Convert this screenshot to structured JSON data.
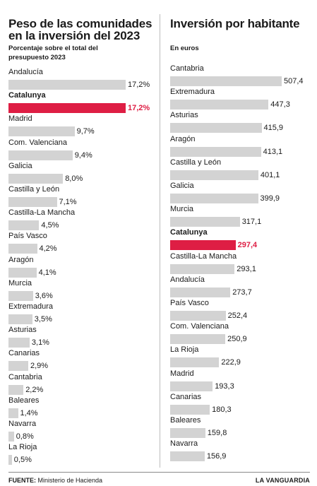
{
  "chart_data": [
    {
      "type": "bar",
      "orientation": "horizontal",
      "title": "Peso de las comunidades en la inversión del 2023",
      "subtitle": "Porcentaje sobre el total del presupuesto 2023",
      "categories": [
        "Andalucía",
        "Catalunya",
        "Madrid",
        "Com. Valenciana",
        "Galicia",
        "Castilla y León",
        "Castilla-La Mancha",
        "País Vasco",
        "Aragón",
        "Murcia",
        "Extremadura",
        "Asturias",
        "Canarias",
        "Cantabria",
        "Baleares",
        "Navarra",
        "La Rioja"
      ],
      "values": [
        17.2,
        17.2,
        9.7,
        9.4,
        8.0,
        7.1,
        4.5,
        4.2,
        4.1,
        3.6,
        3.5,
        3.1,
        2.9,
        2.2,
        1.4,
        0.8,
        0.5
      ],
      "value_labels": [
        "17,2%",
        "17,2%",
        "9,7%",
        "9,4%",
        "8,0%",
        "7,1%",
        "4,5%",
        "4,2%",
        "4,1%",
        "3,6%",
        "3,5%",
        "3,1%",
        "2,9%",
        "2,2%",
        "1,4%",
        "0,8%",
        "0,5%"
      ],
      "highlight": "Catalunya",
      "xlim": [
        0,
        17.2
      ]
    },
    {
      "type": "bar",
      "orientation": "horizontal",
      "title": "Inversión por habitante",
      "subtitle": "En euros",
      "categories": [
        "Cantabria",
        "Extremadura",
        "Asturias",
        "Aragón",
        "Castilla y León",
        "Galicia",
        "Murcia",
        "Catalunya",
        "Castilla-La Mancha",
        "Andalucía",
        "País Vasco",
        "Com. Valenciana",
        "La Rioja",
        "Madrid",
        "Canarias",
        "Baleares",
        "Navarra"
      ],
      "values": [
        507.4,
        447.3,
        415.9,
        413.1,
        401.1,
        399.9,
        317.1,
        297.4,
        293.1,
        273.7,
        252.4,
        250.9,
        222.9,
        193.3,
        180.3,
        159.8,
        156.9
      ],
      "value_labels": [
        "507,4",
        "447,3",
        "415,9",
        "413,1",
        "401,1",
        "399,9",
        "317,1",
        "297,4",
        "293,1",
        "273,7",
        "252,4",
        "250,9",
        "222,9",
        "193,3",
        "180,3",
        "159,8",
        "156,9"
      ],
      "highlight": "Catalunya",
      "xlim": [
        0,
        507.4
      ]
    }
  ],
  "colors": {
    "bar": "#d3d3d3",
    "highlight": "#de1e44",
    "text": "#1a1a1a"
  },
  "footer": {
    "source_label": "FUENTE:",
    "source_value": "Ministerio de Hacienda",
    "brand": "LA VANGUARDIA"
  }
}
